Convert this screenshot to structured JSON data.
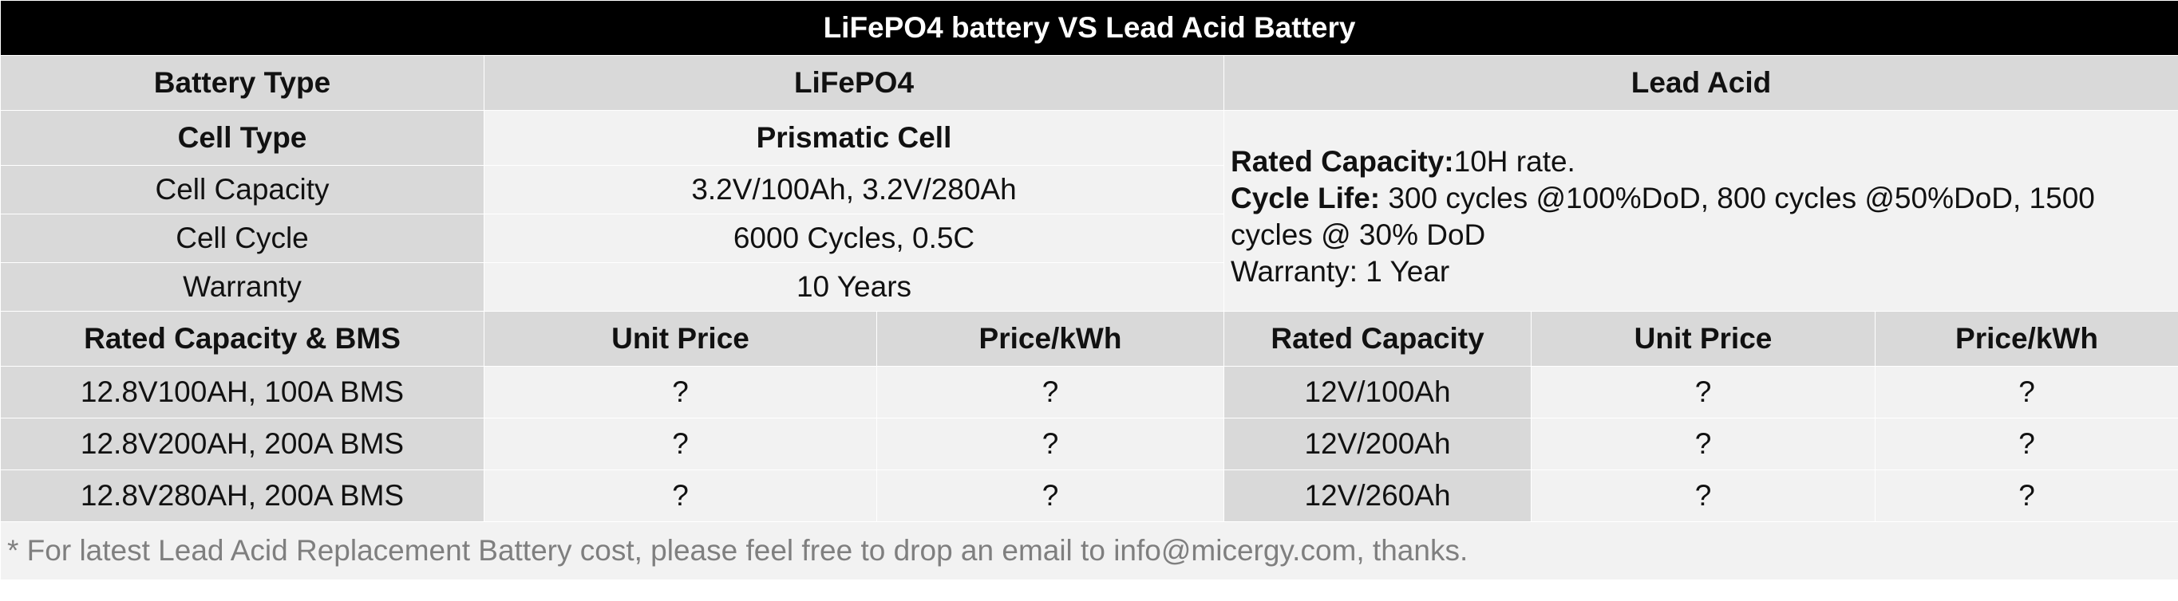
{
  "title": "LiFePO4 battery VS Lead Acid Battery",
  "header": {
    "battery_type_label": "Battery Type",
    "lifepo4_label": "LiFePO4",
    "lead_acid_label": "Lead Acid"
  },
  "lifepo4_specs": {
    "cell_type_label": "Cell Type",
    "cell_type_value": "Prismatic Cell",
    "cell_capacity_label": "Cell Capacity",
    "cell_capacity_value": "3.2V/100Ah, 3.2V/280Ah",
    "cell_cycle_label": "Cell Cycle",
    "cell_cycle_value": "6000 Cycles, 0.5C",
    "warranty_label": "Warranty",
    "warranty_value": "10 Years"
  },
  "lead_acid_specs": {
    "rated_capacity_label": "Rated Capacity:",
    "rated_capacity_value": "10H rate.",
    "cycle_life_label": "Cycle Life:",
    "cycle_life_value": " 300 cycles @100%DoD, 800 cycles @50%DoD, 1500 cycles @ 30% DoD",
    "warranty_text": "Warranty: 1 Year"
  },
  "pricing_header": {
    "lifepo4_capacity_col": "Rated Capacity & BMS",
    "lifepo4_unit_price_col": "Unit Price",
    "lifepo4_price_kwh_col": "Price/kWh",
    "lead_capacity_col": "Rated Capacity",
    "lead_unit_price_col": "Unit Price",
    "lead_price_kwh_col": "Price/kWh"
  },
  "pricing_rows": [
    {
      "lifepo4_capacity": "12.8V100AH, 100A BMS",
      "lifepo4_unit_price": "?",
      "lifepo4_price_kwh": "?",
      "lead_capacity": "12V/100Ah",
      "lead_unit_price": "?",
      "lead_price_kwh": "?"
    },
    {
      "lifepo4_capacity": "12.8V200AH, 200A BMS",
      "lifepo4_unit_price": "?",
      "lifepo4_price_kwh": "?",
      "lead_capacity": "12V/200Ah",
      "lead_unit_price": "?",
      "lead_price_kwh": "?"
    },
    {
      "lifepo4_capacity": "12.8V280AH, 200A BMS",
      "lifepo4_unit_price": "?",
      "lifepo4_price_kwh": "?",
      "lead_capacity": "12V/260Ah",
      "lead_unit_price": "?",
      "lead_price_kwh": "?"
    }
  ],
  "footnote": "* For latest Lead Acid Replacement Battery cost, please feel free to drop an email to info@micergy.com, thanks."
}
